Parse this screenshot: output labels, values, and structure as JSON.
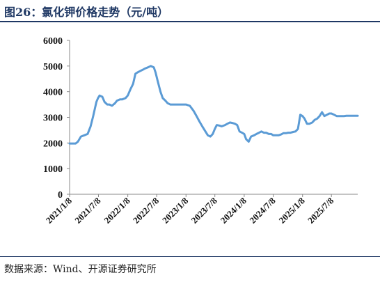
{
  "title": "图26：氯化钾价格走势（元/吨）",
  "source": "数据来源：Wind、开源证券研究所",
  "colors": {
    "line": "#5b9bd5",
    "title": "#1f3864"
  },
  "chart_data": {
    "type": "line",
    "title": "图26：氯化钾价格走势（元/吨）",
    "xlabel": "",
    "ylabel": "",
    "ylim": [
      0,
      6000
    ],
    "xlim": [
      "2021-01-08",
      "2025-12-20"
    ],
    "yticks": [
      "0",
      "1000",
      "2000",
      "3000",
      "4000",
      "5000",
      "6000"
    ],
    "xticks": [
      "2021/1/8",
      "2021/7/8",
      "2022/1/8",
      "2022/7/8",
      "2023/1/8",
      "2023/7/8",
      "2024/1/8",
      "2024/7/8",
      "2025/1/8",
      "2025/7/8"
    ],
    "grid": false,
    "series": [
      {
        "name": "",
        "x": [
          "2021-01-08",
          "2021-02-15",
          "2021-03-01",
          "2021-03-20",
          "2021-04-10",
          "2021-05-01",
          "2021-05-20",
          "2021-06-05",
          "2021-06-25",
          "2021-07-05",
          "2021-07-15",
          "2021-08-01",
          "2021-08-15",
          "2021-09-01",
          "2021-09-15",
          "2021-10-01",
          "2021-10-20",
          "2021-11-01",
          "2021-11-20",
          "2021-12-05",
          "2021-12-25",
          "2022-01-08",
          "2022-01-25",
          "2022-02-10",
          "2022-02-25",
          "2022-03-10",
          "2022-03-25",
          "2022-04-10",
          "2022-04-25",
          "2022-05-15",
          "2022-06-01",
          "2022-06-20",
          "2022-07-01",
          "2022-07-15",
          "2022-08-01",
          "2022-08-15",
          "2022-09-01",
          "2022-09-15",
          "2022-10-01",
          "2022-10-15",
          "2022-11-01",
          "2022-11-20",
          "2022-12-10",
          "2023-01-08",
          "2023-02-01",
          "2023-02-25",
          "2023-03-15",
          "2023-04-01",
          "2023-04-20",
          "2023-05-10",
          "2023-05-25",
          "2023-06-10",
          "2023-06-25",
          "2023-07-08",
          "2023-07-20",
          "2023-08-05",
          "2023-08-20",
          "2023-09-10",
          "2023-09-25",
          "2023-10-10",
          "2023-10-25",
          "2023-11-10",
          "2023-11-25",
          "2023-12-10",
          "2023-12-25",
          "2024-01-08",
          "2024-01-20",
          "2024-02-05",
          "2024-02-20",
          "2024-03-10",
          "2024-03-25",
          "2024-04-10",
          "2024-04-25",
          "2024-05-10",
          "2024-05-25",
          "2024-06-10",
          "2024-06-25",
          "2024-07-08",
          "2024-07-25",
          "2024-08-10",
          "2024-08-25",
          "2024-09-10",
          "2024-09-25",
          "2024-10-10",
          "2024-10-25",
          "2024-11-10",
          "2024-11-25",
          "2024-12-10",
          "2024-12-25",
          "2025-01-08",
          "2025-01-20",
          "2025-02-05",
          "2025-02-20",
          "2025-03-10",
          "2025-03-25",
          "2025-04-10",
          "2025-04-25",
          "2025-05-10",
          "2025-05-25",
          "2025-06-10",
          "2025-06-25",
          "2025-07-08",
          "2025-07-25",
          "2025-08-10",
          "2025-08-25",
          "2025-09-10",
          "2025-09-25",
          "2025-10-10",
          "2025-10-25",
          "2025-11-10",
          "2025-11-25",
          "2025-12-10",
          "2025-12-20"
        ],
        "values": [
          1980,
          1980,
          2050,
          2250,
          2300,
          2350,
          2650,
          3050,
          3600,
          3750,
          3850,
          3800,
          3600,
          3500,
          3500,
          3450,
          3550,
          3650,
          3700,
          3700,
          3750,
          3850,
          4100,
          4300,
          4700,
          4750,
          4800,
          4850,
          4900,
          4950,
          5000,
          4950,
          4750,
          4400,
          4000,
          3750,
          3650,
          3550,
          3500,
          3500,
          3500,
          3500,
          3500,
          3500,
          3450,
          3250,
          3050,
          2850,
          2650,
          2450,
          2300,
          2250,
          2350,
          2550,
          2700,
          2680,
          2650,
          2700,
          2750,
          2800,
          2780,
          2750,
          2700,
          2450,
          2400,
          2350,
          2150,
          2050,
          2250,
          2300,
          2350,
          2400,
          2450,
          2400,
          2400,
          2350,
          2350,
          2300,
          2300,
          2300,
          2330,
          2380,
          2380,
          2400,
          2400,
          2430,
          2450,
          2550,
          3100,
          3050,
          2950,
          2750,
          2750,
          2800,
          2900,
          2950,
          3050,
          3200,
          3050,
          3100,
          3150,
          3150,
          3100,
          3050,
          3050,
          3050,
          3050,
          3060,
          3060,
          3060,
          3060,
          3060,
          3060
        ]
      }
    ]
  }
}
